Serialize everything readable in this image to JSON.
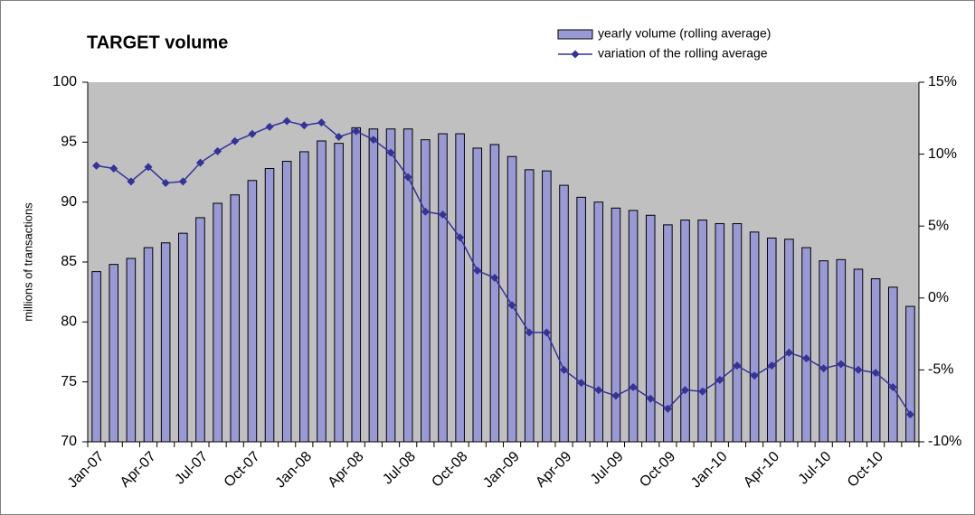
{
  "chart_data": {
    "type": "combo",
    "title": "TARGET volume",
    "y_label": "millions of transactions",
    "categories": [
      "Jan-07",
      null,
      null,
      "Apr-07",
      null,
      null,
      "Jul-07",
      null,
      null,
      "Oct-07",
      null,
      null,
      "Jan-08",
      null,
      null,
      "Apr-08",
      null,
      null,
      "Jul-08",
      null,
      null,
      "Oct-08",
      null,
      null,
      "Jan-09",
      null,
      null,
      "Apr-09",
      null,
      null,
      "Jul-09",
      null,
      null,
      "Oct-09",
      null,
      null,
      "Jan-10",
      null,
      null,
      "Apr-10",
      null,
      null,
      "Jul-10",
      null,
      null,
      "Oct-10",
      null,
      null
    ],
    "series": [
      {
        "name": "yearly volume (rolling average)",
        "type": "bar",
        "axis": "y",
        "color": "#9999d6",
        "values": [
          84.2,
          84.8,
          85.3,
          86.2,
          86.6,
          87.4,
          88.7,
          89.9,
          90.6,
          91.8,
          92.8,
          93.4,
          94.2,
          95.1,
          94.9,
          96.2,
          96.1,
          96.1,
          96.1,
          95.2,
          95.7,
          95.7,
          94.5,
          94.8,
          93.8,
          92.7,
          92.6,
          91.4,
          90.4,
          90.0,
          89.5,
          89.3,
          88.9,
          88.1,
          88.5,
          88.5,
          88.2,
          88.2,
          87.5,
          87.0,
          86.9,
          86.2,
          85.1,
          85.2,
          84.4,
          83.6,
          82.9,
          81.3
        ]
      },
      {
        "name": "variation of the rolling average",
        "type": "line",
        "axis": "y2",
        "color": "#333399",
        "values": [
          9.2,
          9.0,
          8.1,
          9.1,
          8.0,
          8.1,
          9.4,
          10.2,
          10.9,
          11.4,
          11.9,
          12.3,
          12.0,
          12.2,
          11.2,
          11.6,
          11.0,
          10.1,
          8.4,
          6.0,
          5.8,
          4.2,
          1.9,
          1.4,
          -0.5,
          -2.4,
          -2.4,
          -5.0,
          -5.9,
          -6.4,
          -6.8,
          -6.2,
          -7.0,
          -7.7,
          -6.4,
          -6.5,
          -5.7,
          -4.7,
          -5.4,
          -4.7,
          -3.8,
          -4.2,
          -4.9,
          -4.6,
          -5.0,
          -5.2,
          -6.2,
          -8.1
        ]
      }
    ],
    "ylim": [
      70,
      100
    ],
    "yticks": [
      70,
      75,
      80,
      85,
      90,
      95,
      100
    ],
    "y2lim": [
      -10,
      15
    ],
    "y2ticks": [
      {
        "value": -10,
        "label": "-10%"
      },
      {
        "value": -5,
        "label": "-5%"
      },
      {
        "value": 0,
        "label": "0%"
      },
      {
        "value": 5,
        "label": "5%"
      },
      {
        "value": 10,
        "label": "10%"
      },
      {
        "value": 15,
        "label": "15%"
      }
    ],
    "grid": false,
    "plot_background": "#c0c0c0"
  }
}
